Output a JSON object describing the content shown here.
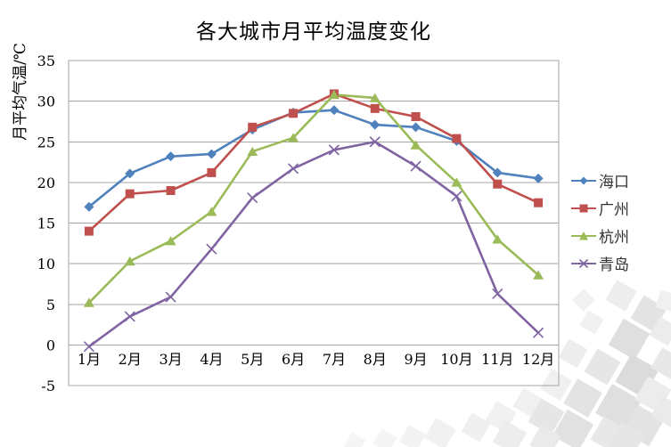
{
  "chart_data": {
    "type": "line",
    "title": "各大城市月平均温度变化",
    "ylabel": "月平均气温/℃",
    "xlabel": "",
    "categories": [
      "1月",
      "2月",
      "3月",
      "4月",
      "5月",
      "6月",
      "7月",
      "8月",
      "9月",
      "10月",
      "11月",
      "12月"
    ],
    "ylim": [
      -5,
      35
    ],
    "yticks": [
      35,
      30,
      25,
      20,
      15,
      10,
      5,
      0,
      -5
    ],
    "grid": true,
    "legend_position": "right",
    "gridline_color": "#A6A6A6",
    "text_color": "#000000",
    "series": [
      {
        "id": "haikou",
        "name": "海口",
        "color": "#4F81BD",
        "marker": "diamond",
        "values": [
          17.0,
          21.1,
          23.2,
          23.5,
          26.5,
          28.6,
          28.9,
          27.1,
          26.8,
          25.1,
          21.2,
          20.5
        ]
      },
      {
        "id": "guangzhou",
        "name": "广州",
        "color": "#C0504D",
        "marker": "square",
        "values": [
          14.0,
          18.6,
          19.0,
          21.2,
          26.8,
          28.5,
          30.9,
          29.1,
          28.1,
          25.4,
          19.8,
          17.5
        ]
      },
      {
        "id": "hangzhou",
        "name": "杭州",
        "color": "#9BBB59",
        "marker": "triangle",
        "values": [
          5.2,
          10.3,
          12.8,
          16.4,
          23.8,
          25.5,
          30.8,
          30.4,
          24.6,
          20.0,
          13.0,
          8.6
        ]
      },
      {
        "id": "qingdao",
        "name": "青岛",
        "color": "#8064A2",
        "marker": "x",
        "values": [
          -0.2,
          3.5,
          5.9,
          11.8,
          18.1,
          21.7,
          24.0,
          25.0,
          22.0,
          18.3,
          6.3,
          1.5
        ]
      }
    ]
  }
}
